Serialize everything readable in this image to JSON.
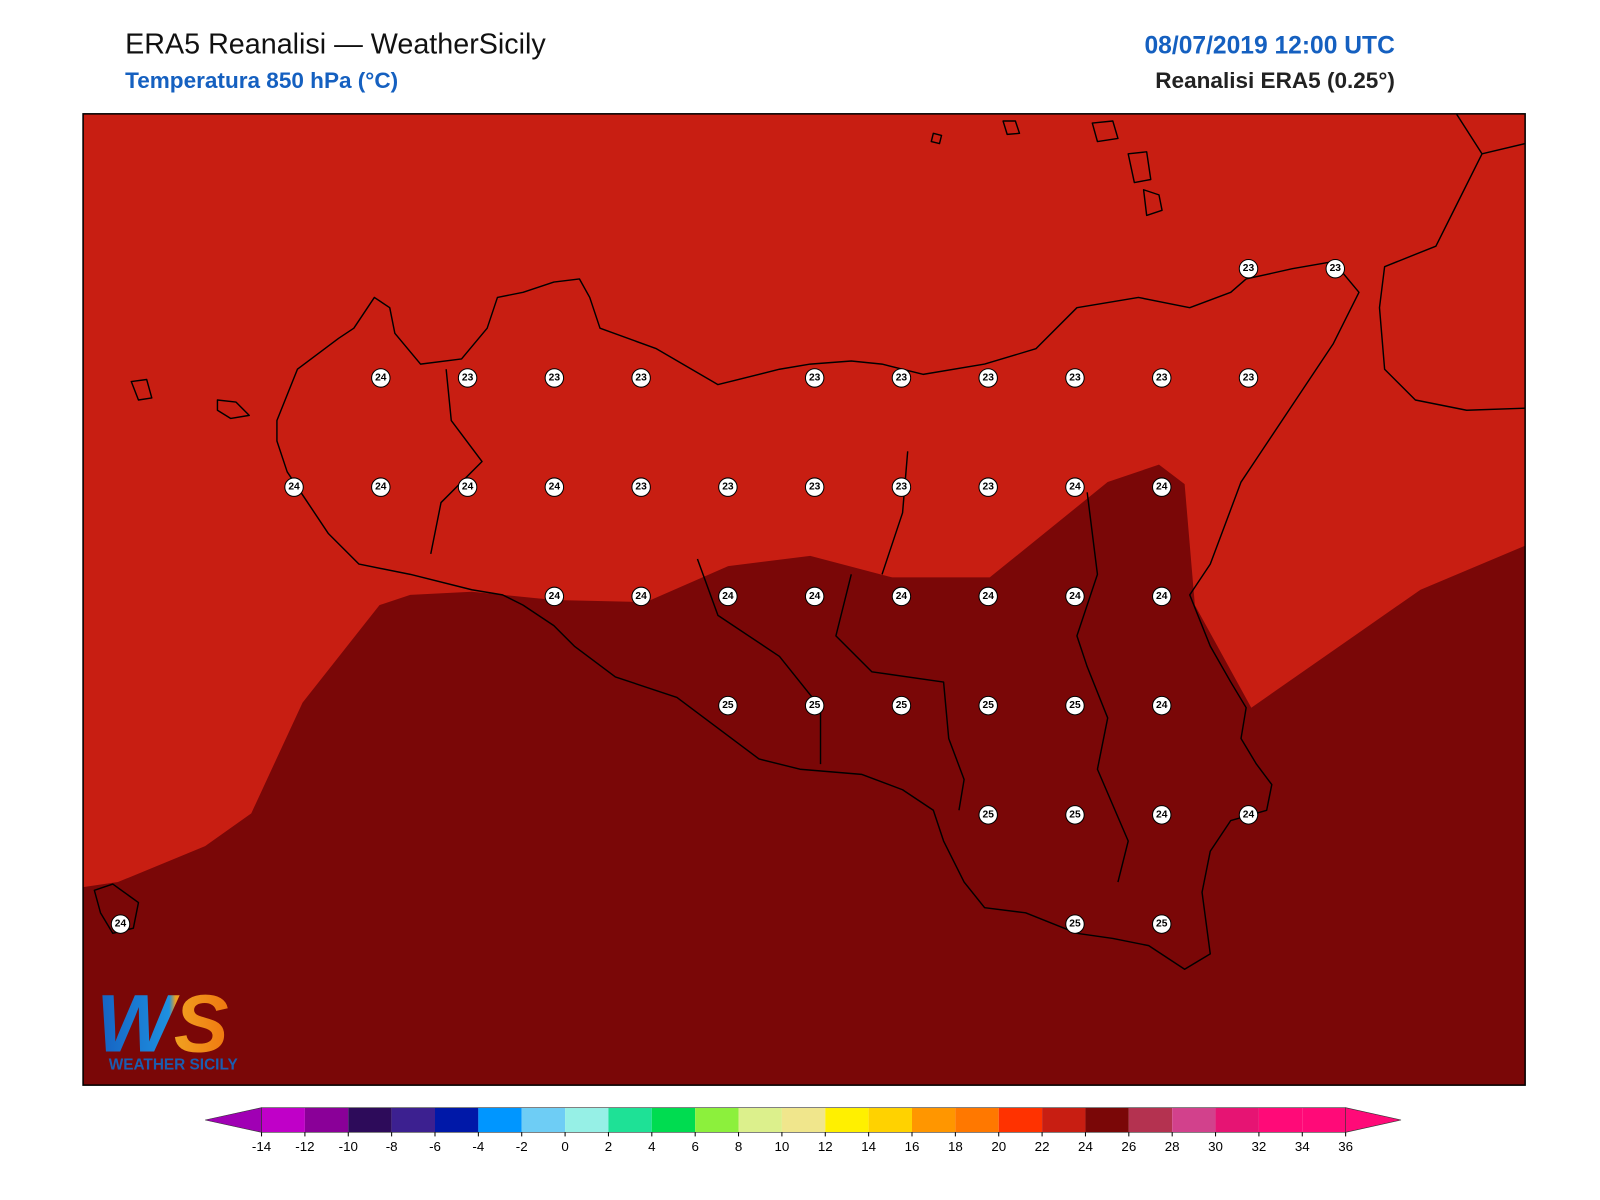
{
  "header": {
    "title": "ERA5 Reanalisi — WeatherSicily",
    "subtitle": "Temperatura 850 hPa (°C)",
    "date": "08/07/2019 12:00 UTC",
    "source": "Reanalisi ERA5 (0.25°)"
  },
  "map": {
    "grid": [
      [
        null,
        null,
        null,
        null,
        null,
        null,
        null,
        null,
        null,
        null,
        null,
        null,
        null,
        "23",
        "23"
      ],
      [
        null,
        null,
        null,
        "24",
        "23",
        "23",
        "23",
        null,
        "23",
        "23",
        "23",
        "23",
        "23",
        "23",
        null
      ],
      [
        null,
        null,
        "24",
        "24",
        "24",
        "24",
        "23",
        "23",
        "23",
        "23",
        "23",
        "24",
        "24",
        null,
        null
      ],
      [
        null,
        null,
        null,
        null,
        null,
        "24",
        "24",
        "24",
        "24",
        "24",
        "24",
        "24",
        "24",
        null,
        null
      ],
      [
        null,
        null,
        null,
        null,
        null,
        null,
        null,
        "25",
        "25",
        "25",
        "25",
        "25",
        "24",
        null,
        null
      ],
      [
        null,
        null,
        null,
        null,
        null,
        null,
        null,
        null,
        null,
        null,
        "25",
        "25",
        "24",
        "24",
        null
      ],
      [
        "24",
        null,
        null,
        null,
        null,
        null,
        null,
        null,
        null,
        null,
        null,
        "25",
        "25",
        null,
        null
      ]
    ]
  },
  "colorbar": {
    "ticks": [
      -14,
      -12,
      -10,
      -8,
      -6,
      -4,
      -2,
      0,
      2,
      4,
      6,
      8,
      10,
      12,
      14,
      16,
      18,
      20,
      22,
      24,
      26,
      28,
      30,
      32,
      34,
      36
    ],
    "colors": [
      "#c000c8",
      "#8a0098",
      "#2d0b5a",
      "#3c2090",
      "#0018a8",
      "#0096ff",
      "#6ecdf5",
      "#96f0e6",
      "#1ee196",
      "#00dc50",
      "#8cf03c",
      "#dcf08c",
      "#f0e68c",
      "#fff000",
      "#ffd200",
      "#ff9600",
      "#ff7800",
      "#ff3200",
      "#c81e12",
      "#7a0707",
      "#b43250",
      "#d2418c",
      "#e61473",
      "#ff0a78",
      "#ff0a78"
    ],
    "under_color": "#a000b4",
    "over_color": "#ff0a78"
  },
  "logo": {
    "initials": "WS",
    "name": "WEATHER SICILY"
  }
}
